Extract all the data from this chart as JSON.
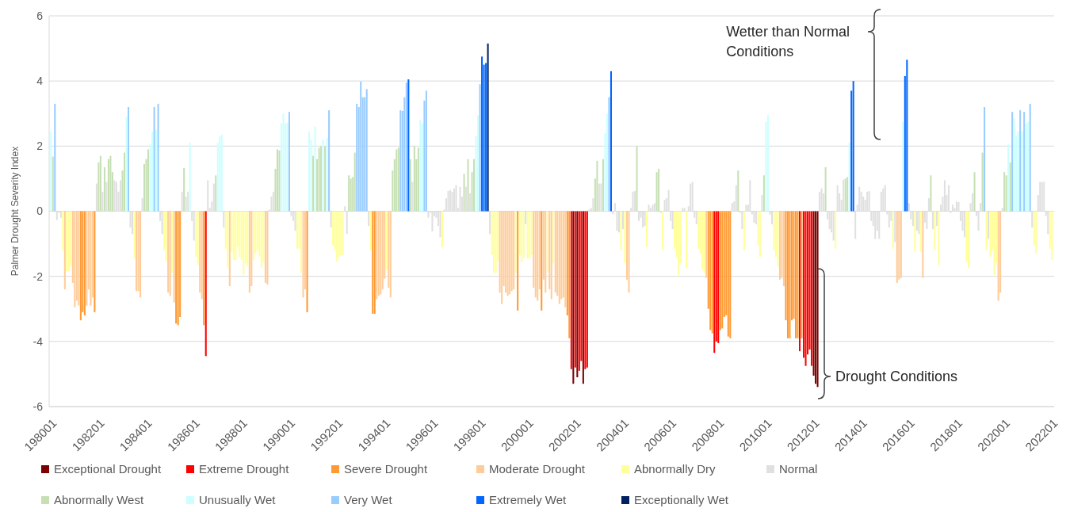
{
  "chart_data": {
    "type": "bar",
    "ylabel": "Palmer Drought Severity Index",
    "ylim": [
      -6,
      6
    ],
    "yticks": [
      -6,
      -4,
      -2,
      0,
      2,
      4,
      6
    ],
    "xlim": [
      "1979-12",
      "2022-02"
    ],
    "xticks": [
      {
        "value": "1980-01",
        "label": "198001"
      },
      {
        "value": "1982-01",
        "label": "198201"
      },
      {
        "value": "1984-01",
        "label": "198401"
      },
      {
        "value": "1986-01",
        "label": "198601"
      },
      {
        "value": "1988-01",
        "label": "198801"
      },
      {
        "value": "1990-01",
        "label": "199001"
      },
      {
        "value": "1992-01",
        "label": "199201"
      },
      {
        "value": "1994-01",
        "label": "199401"
      },
      {
        "value": "1996-01",
        "label": "199601"
      },
      {
        "value": "1998-01",
        "label": "199801"
      },
      {
        "value": "2000-01",
        "label": "200001"
      },
      {
        "value": "2002-01",
        "label": "200201"
      },
      {
        "value": "2004-01",
        "label": "200401"
      },
      {
        "value": "2006-01",
        "label": "200601"
      },
      {
        "value": "2008-01",
        "label": "200801"
      },
      {
        "value": "2010-01",
        "label": "201001"
      },
      {
        "value": "2012-01",
        "label": "201201"
      },
      {
        "value": "2014-01",
        "label": "201401"
      },
      {
        "value": "2016-01",
        "label": "201601"
      },
      {
        "value": "2018-01",
        "label": "201801"
      },
      {
        "value": "2020-01",
        "label": "202001"
      },
      {
        "value": "2022-01",
        "label": "202201"
      }
    ],
    "grid": "y",
    "legend": "bottom",
    "annotations": [
      "Wetter than Normal Conditions",
      "Drought Conditions"
    ],
    "series": [
      {
        "name": "Exceptional Drought",
        "color": "#7b0000",
        "x": [
          "2001-12",
          "2002-02",
          "2002-05",
          "2012-01",
          "2012-02",
          "2012-03"
        ],
        "values": [
          -5.3,
          -5.1,
          -5.3,
          -5.05,
          -5.3,
          -5.4
        ]
      },
      {
        "name": "Extreme Drought",
        "color": "#ff0000",
        "x": [
          "1986-07",
          "2001-11",
          "2002-01",
          "2002-03",
          "2002-04",
          "2002-06",
          "2002-07",
          "2007-11",
          "2007-12",
          "2008-01",
          "2011-06",
          "2011-08",
          "2011-09",
          "2011-10",
          "2011-11",
          "2011-12"
        ],
        "values": [
          -4.45,
          -4.85,
          -4.8,
          -4.9,
          -4.6,
          -4.85,
          -4.8,
          -4.35,
          -4.0,
          -4.05,
          -4.3,
          -4.5,
          -4.75,
          -4.4,
          -4.25,
          -4.75
        ]
      },
      {
        "name": "Severe Drought",
        "color": "#ff9933",
        "x": [
          "1981-04",
          "1981-05",
          "1981-06",
          "1981-11",
          "1985-04",
          "1985-05",
          "1985-06",
          "1986-06",
          "1990-10",
          "1993-07",
          "1993-08",
          "1999-08",
          "2000-08",
          "2001-09",
          "2001-10",
          "2007-08",
          "2007-09",
          "2007-10",
          "2008-02",
          "2008-03",
          "2008-04",
          "2008-05",
          "2008-06",
          "2008-07",
          "2010-11",
          "2010-12",
          "2011-01",
          "2011-02",
          "2011-03",
          "2011-04",
          "2011-05",
          "2011-07"
        ],
        "values": [
          -3.35,
          -3.1,
          -3.2,
          -3.1,
          -3.45,
          -3.5,
          -3.25,
          -3.5,
          -3.1,
          -3.15,
          -3.15,
          -3.05,
          -3.05,
          -3.2,
          -3.9,
          -3.0,
          -3.65,
          -3.75,
          -3.65,
          -3.6,
          -3.25,
          -3.2,
          -3.85,
          -3.9,
          -3.35,
          -3.9,
          -3.9,
          -3.35,
          -3.3,
          -3.9,
          -3.9,
          -3.9
        ]
      },
      {
        "name": "Moderate Drought",
        "color": "#ffcc99",
        "x": [
          "1980-08",
          "1980-12",
          "1981-01",
          "1981-02",
          "1981-03",
          "1981-07",
          "1981-08",
          "1981-09",
          "1981-10",
          "1983-08",
          "1983-09",
          "1983-10",
          "1984-12",
          "1985-01",
          "1985-03",
          "1986-04",
          "1986-05",
          "1987-07",
          "1988-05",
          "1988-06",
          "1989-01",
          "1989-02",
          "1990-08",
          "1990-09",
          "1993-09",
          "1993-10",
          "1993-11",
          "1993-12",
          "1994-01",
          "1994-03",
          "1994-04",
          "1998-11",
          "1998-12",
          "1999-01",
          "1999-02",
          "1999-03",
          "1999-04",
          "1999-05",
          "1999-06",
          "2000-04",
          "2000-05",
          "2000-06",
          "2000-07",
          "2000-09",
          "2000-10",
          "2000-12",
          "2001-01",
          "2001-03",
          "2001-04",
          "2001-05",
          "2001-06",
          "2001-07",
          "2001-08",
          "2004-03",
          "2004-04",
          "2007-07",
          "2010-08",
          "2010-09",
          "2010-10",
          "2015-07",
          "2015-08",
          "2015-09",
          "2016-08",
          "2019-10",
          "2019-11"
        ],
        "values": [
          -2.4,
          -2.2,
          -2.95,
          -2.75,
          -2.9,
          -2.9,
          -2.4,
          -2.9,
          -2.65,
          -2.45,
          -2.45,
          -2.65,
          -2.5,
          -2.6,
          -2.8,
          -2.5,
          -2.7,
          -2.3,
          -2.5,
          -2.3,
          -2.2,
          -2.25,
          -2.65,
          -2.4,
          -2.7,
          -2.6,
          -2.55,
          -2.4,
          -2.07,
          -2.35,
          -2.65,
          -2.5,
          -2.85,
          -2.3,
          -2.5,
          -2.6,
          -2.55,
          -2.45,
          -2.4,
          -2.35,
          -2.65,
          -2.75,
          -2.4,
          -2.1,
          -2.5,
          -2.4,
          -2.7,
          -2.5,
          -2.6,
          -2.85,
          -2.7,
          -2.65,
          -2.95,
          -2.1,
          -2.5,
          -2.05,
          -2.1,
          -2.05,
          -2.3,
          -2.2,
          -2.1,
          -2.05,
          -2.05,
          -2.75,
          -2.5
        ]
      },
      {
        "name": "Abnormally Dry",
        "color": "#ffff99",
        "x": [
          "1980-07",
          "1980-09",
          "1980-10",
          "1980-11",
          "1983-07",
          "1984-10",
          "1984-11",
          "1985-02",
          "1986-02",
          "1986-03",
          "1987-05",
          "1987-06",
          "1987-08",
          "1987-09",
          "1987-10",
          "1987-11",
          "1987-12",
          "1988-01",
          "1988-02",
          "1988-03",
          "1988-04",
          "1988-07",
          "1988-08",
          "1988-09",
          "1988-10",
          "1988-11",
          "1988-12",
          "1990-05",
          "1990-06",
          "1990-07",
          "1991-11",
          "1991-12",
          "1992-01",
          "1992-02",
          "1992-03",
          "1992-04",
          "1993-06",
          "1994-02",
          "1996-06",
          "1998-07",
          "1998-08",
          "1998-09",
          "1998-10",
          "1999-07",
          "1999-09",
          "1999-10",
          "1999-11",
          "2000-01",
          "2000-02",
          "2000-03",
          "2000-11",
          "2001-02",
          "2003-12",
          "2004-02",
          "2005-01",
          "2005-09",
          "2006-03",
          "2006-04",
          "2006-05",
          "2006-06",
          "2006-09",
          "2007-03",
          "2007-04",
          "2007-05",
          "2007-06",
          "2009-02",
          "2009-09",
          "2009-10",
          "2010-05",
          "2010-06",
          "2010-07",
          "2012-12",
          "2015-05",
          "2016-04",
          "2016-07",
          "2017-02",
          "2017-04",
          "2018-06",
          "2018-07",
          "2019-04",
          "2019-06",
          "2019-07",
          "2019-08",
          "2019-09",
          "2021-04",
          "2021-05",
          "2021-12",
          "2022-01"
        ],
        "values": [
          -1.2,
          -1.85,
          -1.85,
          -1.7,
          -1.45,
          -1.2,
          -1.55,
          -1.9,
          -1.4,
          -1.65,
          -1.15,
          -1.75,
          -1.25,
          -1.5,
          -1.5,
          -1.1,
          -1.4,
          -1.5,
          -1.95,
          -1.6,
          -1.7,
          -1.5,
          -1.3,
          -1.2,
          -1.4,
          -1.75,
          -1.6,
          -1.15,
          -1.15,
          -1.9,
          -1.05,
          -1.2,
          -1.55,
          -1.4,
          -1.35,
          -1.35,
          -1.2,
          -1.8,
          -1.1,
          -1.35,
          -1.9,
          -1.9,
          -1.55,
          -1.9,
          -1.35,
          -1.55,
          -1.45,
          -1.45,
          -1.45,
          -1.35,
          -1.85,
          -1.6,
          -1.2,
          -1.6,
          -1.1,
          -1.2,
          -1.15,
          -1.4,
          -1.95,
          -1.6,
          -1.75,
          -1.15,
          -1.3,
          -1.8,
          -1.9,
          -1.2,
          -1.05,
          -1.4,
          -1.2,
          -1.4,
          -1.7,
          -1.15,
          -1.15,
          -1.25,
          -1.25,
          -1.2,
          -1.65,
          -1.55,
          -1.75,
          -1.2,
          -1.4,
          -1.2,
          -1.95,
          -1.6,
          -1.05,
          -1.3,
          -1.15,
          -1.5
        ]
      },
      {
        "name": "Normal",
        "color": "#e0e0e0",
        "x": [
          "1980-04",
          "1980-05",
          "1980-06",
          "1981-12",
          "1982-03",
          "1982-05",
          "1982-09",
          "1982-10",
          "1982-11",
          "1982-12",
          "1983-05",
          "1983-06",
          "1983-11",
          "1984-08",
          "1984-09",
          "1985-07",
          "1985-09",
          "1985-10",
          "1985-12",
          "1986-01",
          "1986-08",
          "1986-09",
          "1986-10",
          "1986-11",
          "1987-04",
          "1989-03",
          "1989-04",
          "1989-05",
          "1990-02",
          "1990-03",
          "1990-04",
          "1991-10",
          "1992-05",
          "1992-06",
          "1993-05",
          "1995-03",
          "1995-11",
          "1995-12",
          "1996-01",
          "1996-02",
          "1996-03",
          "1996-04",
          "1996-05",
          "1996-07",
          "1996-08",
          "1996-09",
          "1996-10",
          "1996-11",
          "1996-12",
          "1997-01",
          "1997-02",
          "1997-03",
          "1997-04",
          "1997-06",
          "1997-08",
          "1998-06",
          "1999-12",
          "2002-08",
          "2002-09",
          "2002-10",
          "2003-01",
          "2003-02",
          "2003-08",
          "2003-09",
          "2003-10",
          "2003-11",
          "2004-01",
          "2004-05",
          "2004-06",
          "2004-07",
          "2004-09",
          "2004-10",
          "2004-11",
          "2004-12",
          "2005-02",
          "2005-03",
          "2005-04",
          "2005-05",
          "2005-08",
          "2005-10",
          "2005-11",
          "2005-12",
          "2006-01",
          "2006-02",
          "2006-07",
          "2006-08",
          "2006-10",
          "2006-11",
          "2006-12",
          "2007-01",
          "2007-02",
          "2008-08",
          "2008-09",
          "2008-10",
          "2008-12",
          "2009-01",
          "2009-03",
          "2009-04",
          "2009-05",
          "2009-06",
          "2009-07",
          "2009-08",
          "2009-11",
          "2010-03",
          "2010-04",
          "2012-04",
          "2012-05",
          "2012-06",
          "2012-08",
          "2012-09",
          "2012-10",
          "2012-11",
          "2013-01",
          "2013-02",
          "2013-03",
          "2013-04",
          "2013-10",
          "2013-11",
          "2013-12",
          "2014-01",
          "2014-02",
          "2014-03",
          "2014-04",
          "2014-05",
          "2014-06",
          "2014-07",
          "2014-08",
          "2014-09",
          "2014-10",
          "2014-11",
          "2014-12",
          "2015-01",
          "2015-02",
          "2015-03",
          "2015-04",
          "2015-06",
          "2016-01",
          "2016-02",
          "2016-03",
          "2016-05",
          "2016-06",
          "2016-09",
          "2016-10",
          "2016-11",
          "2017-01",
          "2017-03",
          "2017-05",
          "2017-06",
          "2017-07",
          "2017-08",
          "2017-09",
          "2017-10",
          "2017-11",
          "2017-12",
          "2018-01",
          "2018-02",
          "2018-03",
          "2018-04",
          "2018-05",
          "2018-08",
          "2018-09",
          "2018-11",
          "2018-12",
          "2019-01",
          "2019-05",
          "2019-12",
          "2021-03",
          "2021-06",
          "2021-07",
          "2021-08",
          "2021-09",
          "2021-10",
          "2021-11"
        ],
        "values": [
          -0.27,
          -0.05,
          -0.2,
          0.85,
          0.6,
          0.9,
          0.95,
          0.9,
          0.6,
          0.95,
          -0.5,
          -0.7,
          0.4,
          -0.3,
          -0.7,
          0.6,
          0.45,
          0.6,
          -0.3,
          -0.9,
          0.95,
          0.1,
          0.3,
          0.85,
          -0.5,
          0.05,
          0.45,
          0.6,
          -0.15,
          -0.3,
          -0.6,
          -0.5,
          0.15,
          -0.7,
          -0.45,
          0.9,
          -0.2,
          -0.05,
          -0.62,
          -0.15,
          -0.2,
          -0.45,
          -0.8,
          0.05,
          0.4,
          0.62,
          0.65,
          0.6,
          0.7,
          0.8,
          0.1,
          0.75,
          0.45,
          0.75,
          0.55,
          -0.7,
          -0.4,
          0.05,
          0.1,
          0.4,
          0.85,
          0.85,
          -0.1,
          0.25,
          -0.6,
          -0.65,
          -0.55,
          0.1,
          0.6,
          0.62,
          -0.3,
          -0.2,
          -0.5,
          -0.45,
          0.2,
          0.1,
          0.2,
          0.25,
          -0.05,
          0.35,
          0.4,
          0.65,
          -0.3,
          -0.55,
          0.1,
          0.1,
          0.15,
          0.85,
          0.9,
          -0.2,
          -0.4,
          0.25,
          0.3,
          0.8,
          -0.05,
          -0.55,
          0.2,
          0.2,
          0.95,
          -0.1,
          -0.35,
          -0.4,
          0.5,
          -0.1,
          -0.4,
          0.6,
          0.7,
          0.55,
          -0.25,
          -0.55,
          -0.65,
          -0.9,
          0.8,
          0.55,
          0.35,
          0.97,
          -0.85,
          0.2,
          0.75,
          0.6,
          0.45,
          0.35,
          0.6,
          0.62,
          -0.3,
          -0.45,
          -0.85,
          -0.6,
          -0.85,
          0.6,
          0.7,
          0.8,
          -0.1,
          -0.5,
          -0.3,
          -0.95,
          0.25,
          -0.25,
          -0.45,
          -0.6,
          -0.7,
          -0.35,
          -0.55,
          0.4,
          -0.55,
          -0.45,
          0.2,
          0.45,
          0.95,
          0.5,
          0.8,
          -0.05,
          0.2,
          0.1,
          0.3,
          0.28,
          -0.3,
          -0.6,
          -0.8,
          0.25,
          0.55,
          -0.15,
          -0.6,
          0.25,
          -0.85,
          0.1,
          -0.5,
          0.5,
          0.9,
          0.9,
          0.9,
          -0.15,
          -0.7
        ]
      },
      {
        "name": "Abnormally West",
        "color": "#c6e0b4",
        "x": [
          "1980-02",
          "1982-01",
          "1982-02",
          "1982-04",
          "1982-06",
          "1982-07",
          "1982-08",
          "1983-01",
          "1983-02",
          "1983-12",
          "1984-01",
          "1984-02",
          "1985-08",
          "1986-12",
          "1989-06",
          "1989-07",
          "1989-08",
          "1991-01",
          "1991-03",
          "1991-04",
          "1991-05",
          "1991-07",
          "1992-07",
          "1992-08",
          "1992-09",
          "1992-10",
          "1994-05",
          "1994-06",
          "1994-07",
          "1994-08",
          "1995-02",
          "1995-04",
          "1995-05",
          "1995-06",
          "1997-05",
          "1997-07",
          "1997-09",
          "1997-10",
          "2002-11",
          "2002-12",
          "2003-03",
          "2004-08",
          "2005-06",
          "2005-07",
          "2008-11",
          "2009-12",
          "2012-07",
          "2013-05",
          "2013-06",
          "2016-12",
          "2018-10",
          "2019-02",
          "2020-01",
          "2020-02",
          "2020-04"
        ],
        "values": [
          1.68,
          1.5,
          1.7,
          1.35,
          1.6,
          1.7,
          1.2,
          1.25,
          1.8,
          1.45,
          1.6,
          1.9,
          1.33,
          1.1,
          1.3,
          1.9,
          1.87,
          1.7,
          1.6,
          1.95,
          2.0,
          2.0,
          1.1,
          1.0,
          1.05,
          1.8,
          1.25,
          1.6,
          1.9,
          1.95,
          1.6,
          2.0,
          1.6,
          1.95,
          1.15,
          1.6,
          1.2,
          1.6,
          1.0,
          1.55,
          1.6,
          2.0,
          1.2,
          1.3,
          1.25,
          1.1,
          1.35,
          1.0,
          1.05,
          1.1,
          1.2,
          1.8,
          1.2,
          1.1,
          1.5
        ]
      },
      {
        "name": "Unusually Wet",
        "color": "#ccffff",
        "x": [
          "1980-01",
          "1983-03",
          "1984-03",
          "1984-04",
          "1984-06",
          "1985-11",
          "1987-01",
          "1987-02",
          "1987-03",
          "1989-09",
          "1989-10",
          "1989-11",
          "1989-12",
          "1990-11",
          "1990-12",
          "1991-02",
          "1991-06",
          "1991-08",
          "1995-07",
          "1995-08",
          "1997-11",
          "1997-12",
          "2003-04",
          "2003-05",
          "2010-01",
          "2010-02",
          "2013-07",
          "2015-10",
          "2020-03",
          "2020-06",
          "2020-07",
          "2020-08",
          "2020-10",
          "2020-12",
          "2021-01"
        ],
        "values": [
          2.45,
          2.9,
          2.05,
          2.45,
          2.5,
          2.1,
          2.1,
          2.3,
          2.35,
          2.7,
          3.0,
          2.7,
          2.72,
          2.45,
          2.2,
          2.6,
          2.2,
          2.25,
          2.8,
          2.7,
          2.3,
          2.95,
          2.4,
          3.0,
          2.75,
          2.95,
          2.1,
          2.75,
          2.05,
          2.85,
          2.3,
          2.45,
          2.45,
          2.7,
          2.75
        ]
      },
      {
        "name": "Very Wet",
        "color": "#99ccff",
        "x": [
          "1980-03",
          "1983-04",
          "1984-05",
          "1984-07",
          "1990-01",
          "1991-09",
          "1992-11",
          "1992-12",
          "1993-01",
          "1993-02",
          "1993-03",
          "1993-04",
          "1994-09",
          "1994-10",
          "1994-11",
          "1994-12",
          "1995-09",
          "1995-10",
          "1998-01",
          "2003-06",
          "2019-03",
          "2020-05",
          "2020-09",
          "2020-11",
          "2021-02"
        ],
        "values": [
          3.3,
          3.2,
          3.2,
          3.3,
          3.05,
          3.1,
          3.3,
          3.2,
          3.98,
          3.5,
          3.5,
          3.75,
          3.1,
          3.08,
          3.5,
          3.95,
          3.4,
          3.7,
          3.9,
          3.5,
          3.2,
          3.05,
          3.1,
          3.05,
          3.3
        ]
      },
      {
        "name": "Extremely Wet",
        "color": "#0066ff",
        "x": [
          "1995-01",
          "1998-02",
          "1998-03",
          "1998-04",
          "2003-07",
          "2013-08",
          "2013-09",
          "2015-11",
          "2015-12"
        ],
        "values": [
          4.05,
          4.75,
          4.5,
          4.55,
          4.3,
          3.7,
          4.0,
          4.15,
          4.65
        ]
      },
      {
        "name": "Exceptionally Wet",
        "color": "#002060",
        "x": [
          "1998-05"
        ],
        "values": [
          5.15
        ]
      }
    ]
  }
}
